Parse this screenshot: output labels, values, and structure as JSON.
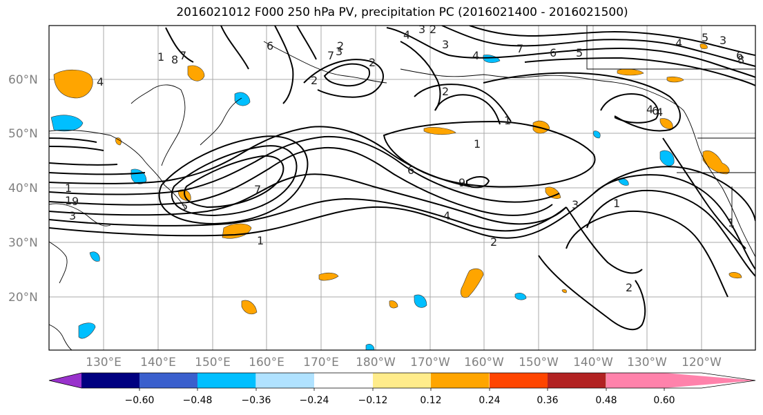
{
  "title": "2016021012 F000 250 hPa PV, precipitation PC (2016021400 - 2016021500)",
  "map": {
    "lat_labels": [
      "60°N",
      "50°N",
      "40°N",
      "30°N",
      "20°N"
    ],
    "lon_labels": [
      "130°E",
      "140°E",
      "150°E",
      "160°E",
      "170°E",
      "180°W",
      "170°W",
      "160°W",
      "150°W",
      "140°W",
      "130°W",
      "120°W"
    ],
    "contour_labels": [
      "4",
      "8",
      "6",
      "7",
      "3",
      "2",
      "1",
      "9",
      "4",
      "3",
      "2",
      "7",
      "6",
      "5",
      "4",
      "3",
      "2",
      "7",
      "1",
      "6",
      "9",
      "4",
      "5",
      "7",
      "3",
      "2",
      "1",
      "8",
      "6",
      "2",
      "1",
      "1",
      "3",
      "6",
      "4",
      "4",
      "5",
      "1",
      "2",
      "3",
      "1",
      "2",
      "1",
      "4"
    ]
  },
  "colorbar": {
    "ticks": [
      "−0.60",
      "−0.48",
      "−0.36",
      "−0.24",
      "−0.12",
      "0.12",
      "0.24",
      "0.36",
      "0.48",
      "0.60"
    ],
    "colors": [
      "#9932cc",
      "#000080",
      "#3a5fcd",
      "#00bfff",
      "#b0e2ff",
      "#ffffff",
      "#ffec8b",
      "#ffa500",
      "#ff4500",
      "#b22222",
      "#ff82ab"
    ]
  }
}
